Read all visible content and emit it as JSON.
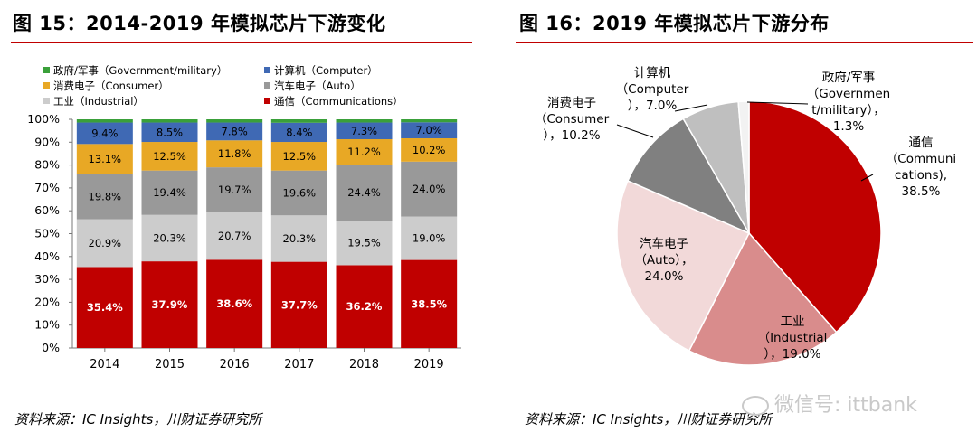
{
  "left_title": "图 15：2014-2019 年模拟芯片下游变化",
  "right_title": "图 16：2019 年模拟芯片下游分布",
  "left_source": "资料来源：IC Insights，川财证券研究所",
  "right_source": "资料来源：IC Insights，川财证券研究所",
  "watermark": "微信号: ittbank",
  "colors": {
    "government": "#3aa03a",
    "computer": "#3f69b4",
    "consumer": "#e8a825",
    "auto": "#999999",
    "industrial": "#cccccc",
    "communications": "#c00000",
    "title_rule": "#c00000"
  },
  "chart_data": [
    {
      "type": "bar",
      "stacked": true,
      "categories": [
        "2014",
        "2015",
        "2016",
        "2017",
        "2018",
        "2019"
      ],
      "series": [
        {
          "name": "通信（Communications）",
          "key": "communications",
          "values": [
            35.4,
            37.9,
            38.6,
            37.7,
            36.2,
            38.5
          ],
          "labels": [
            "35.4%",
            "37.9%",
            "38.6%",
            "37.7%",
            "36.2%",
            "38.5%"
          ]
        },
        {
          "name": "工业（Industrial）",
          "key": "industrial",
          "values": [
            20.9,
            20.3,
            20.7,
            20.3,
            19.5,
            19.0
          ],
          "labels": [
            "20.9%",
            "20.3%",
            "20.7%",
            "20.3%",
            "19.5%",
            "19.0%"
          ]
        },
        {
          "name": "汽车电子（Auto）",
          "key": "auto",
          "values": [
            19.8,
            19.4,
            19.7,
            19.6,
            24.4,
            24.0
          ],
          "labels": [
            "19.8%",
            "19.4%",
            "19.7%",
            "19.6%",
            "24.4%",
            "24.0%"
          ]
        },
        {
          "name": "消费电子（Consumer）",
          "key": "consumer",
          "values": [
            13.1,
            12.5,
            11.8,
            12.5,
            11.2,
            10.2
          ],
          "labels": [
            "13.1%",
            "12.5%",
            "11.8%",
            "12.5%",
            "11.2%",
            "10.2%"
          ]
        },
        {
          "name": "计算机（Computer）",
          "key": "computer",
          "values": [
            9.4,
            8.5,
            7.8,
            8.4,
            7.3,
            7.0
          ],
          "labels": [
            "9.4%",
            "8.5%",
            "7.8%",
            "8.4%",
            "7.3%",
            "7.0%"
          ]
        },
        {
          "name": "政府/军事（Government/military）",
          "key": "government",
          "values": [
            1.4,
            1.4,
            1.4,
            1.5,
            1.4,
            1.3
          ],
          "labels": []
        }
      ],
      "legend_order": [
        "government",
        "computer",
        "consumer",
        "auto",
        "industrial",
        "communications"
      ],
      "legend_placement": "top",
      "ylim": [
        0,
        100
      ],
      "yticks": [
        "0%",
        "10%",
        "20%",
        "30%",
        "40%",
        "50%",
        "60%",
        "70%",
        "80%",
        "90%",
        "100%"
      ],
      "grid": false
    },
    {
      "type": "pie",
      "slices": [
        {
          "key": "communications",
          "value": 38.5,
          "label": [
            "通信",
            "（Communi",
            "cations),",
            "38.5%"
          ],
          "color": "#c00000"
        },
        {
          "key": "industrial",
          "value": 19.0,
          "label": [
            "工业",
            "（Industrial",
            "），19.0%"
          ],
          "color": "#d98c8c"
        },
        {
          "key": "auto",
          "value": 24.0,
          "label": [
            "汽车电子",
            "（Auto），",
            "24.0%"
          ],
          "color": "#f2d9d9"
        },
        {
          "key": "consumer",
          "value": 10.2,
          "label": [
            "消费电子",
            "（Consumer",
            "），10.2%"
          ],
          "color": "#808080"
        },
        {
          "key": "computer",
          "value": 7.0,
          "label": [
            "计算机",
            "（Computer",
            "），7.0%"
          ],
          "color": "#bfbfbf"
        },
        {
          "key": "government",
          "value": 1.3,
          "label": [
            "政府/军事",
            "（Governmen",
            "t/military），",
            "1.3%"
          ],
          "color": "#f2f2f2"
        }
      ]
    }
  ]
}
